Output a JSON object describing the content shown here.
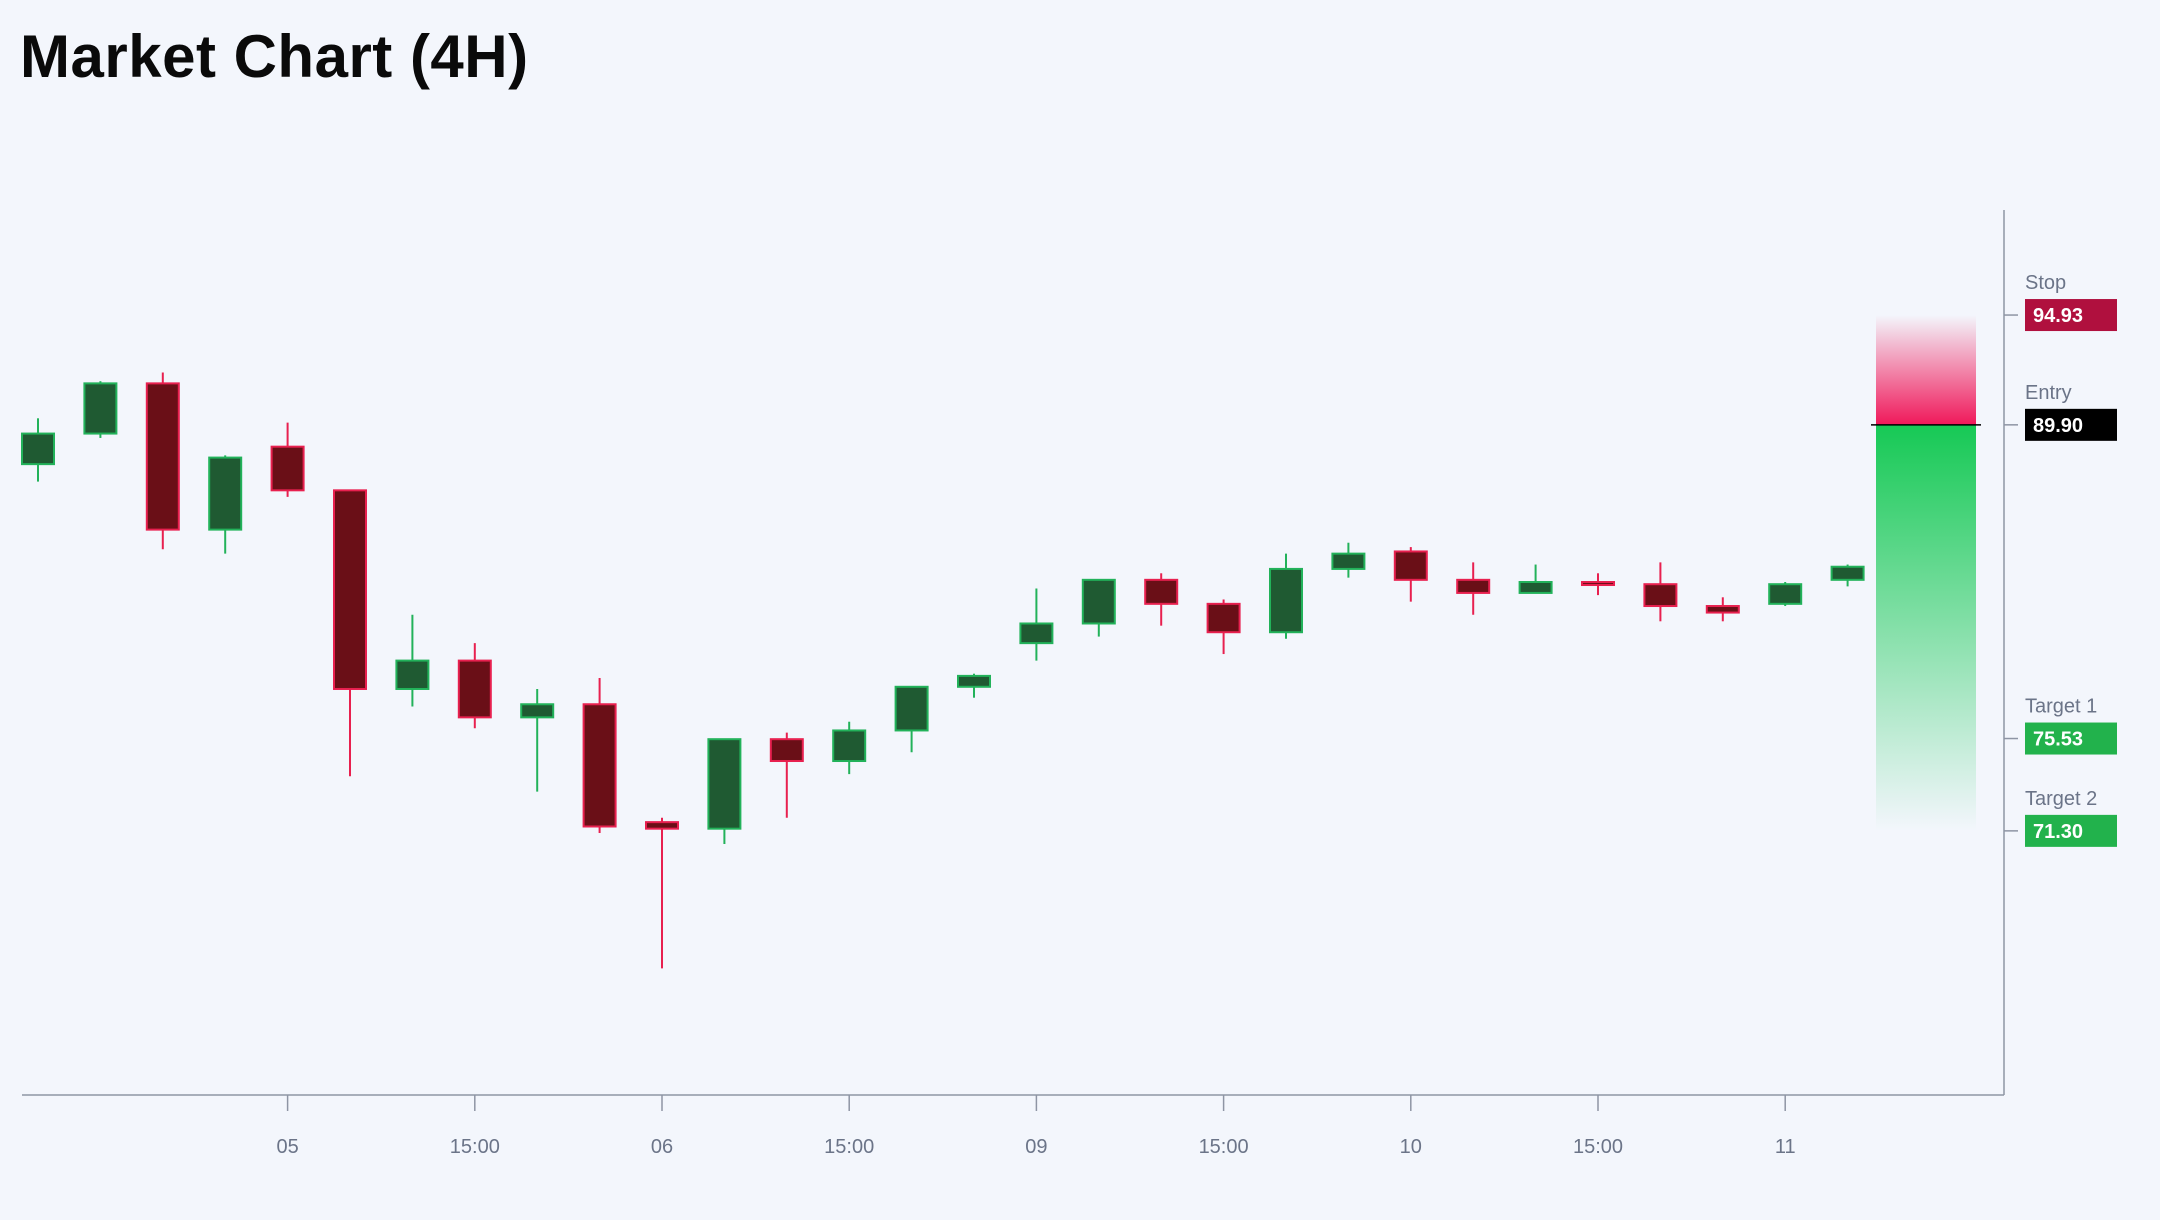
{
  "title": "Market Chart (4H)",
  "colors": {
    "background": "#f3f6fc",
    "up_body": "#1f5a32",
    "up_border": "#22b25a",
    "down_body": "#6a0f17",
    "down_border": "#e8204f",
    "axis": "#8e95a4",
    "stop": "#b0103e",
    "entry": "#000000",
    "target": "#22b24c",
    "zone_red": "#f0185a",
    "zone_green": "#16c955"
  },
  "chart_data": {
    "type": "candlestick",
    "title": "Market Chart (4H)",
    "ylim": [
      59.2,
      100.2
    ],
    "x_ticks": [
      {
        "index": 4,
        "label": "05"
      },
      {
        "index": 7,
        "label": "15:00"
      },
      {
        "index": 10,
        "label": "06"
      },
      {
        "index": 13,
        "label": "15:00"
      },
      {
        "index": 16,
        "label": "09"
      },
      {
        "index": 19,
        "label": "15:00"
      },
      {
        "index": 22,
        "label": "10"
      },
      {
        "index": 25,
        "label": "15:00"
      },
      {
        "index": 28,
        "label": "11"
      }
    ],
    "candles": [
      {
        "o": 88.1,
        "h": 90.2,
        "l": 87.3,
        "c": 89.5
      },
      {
        "o": 89.5,
        "h": 91.9,
        "l": 89.3,
        "c": 91.8
      },
      {
        "o": 91.8,
        "h": 92.3,
        "l": 84.2,
        "c": 85.1
      },
      {
        "o": 85.1,
        "h": 88.5,
        "l": 84.0,
        "c": 88.4
      },
      {
        "o": 88.9,
        "h": 90.0,
        "l": 86.6,
        "c": 86.9
      },
      {
        "o": 86.9,
        "h": 86.9,
        "l": 73.8,
        "c": 77.8
      },
      {
        "o": 77.8,
        "h": 81.2,
        "l": 77.0,
        "c": 79.1
      },
      {
        "o": 79.1,
        "h": 79.9,
        "l": 76.0,
        "c": 76.5
      },
      {
        "o": 76.5,
        "h": 77.8,
        "l": 73.1,
        "c": 77.1
      },
      {
        "o": 77.1,
        "h": 78.3,
        "l": 71.2,
        "c": 71.5
      },
      {
        "o": 71.7,
        "h": 71.9,
        "l": 65.0,
        "c": 71.4
      },
      {
        "o": 71.4,
        "h": 75.5,
        "l": 70.7,
        "c": 75.5
      },
      {
        "o": 75.5,
        "h": 75.8,
        "l": 71.9,
        "c": 74.5
      },
      {
        "o": 74.5,
        "h": 76.3,
        "l": 73.9,
        "c": 75.9
      },
      {
        "o": 75.9,
        "h": 77.9,
        "l": 74.9,
        "c": 77.9
      },
      {
        "o": 77.9,
        "h": 78.5,
        "l": 77.4,
        "c": 78.4
      },
      {
        "o": 79.9,
        "h": 82.4,
        "l": 79.1,
        "c": 80.8
      },
      {
        "o": 80.8,
        "h": 82.8,
        "l": 80.2,
        "c": 82.8
      },
      {
        "o": 82.8,
        "h": 83.1,
        "l": 80.7,
        "c": 81.7
      },
      {
        "o": 81.7,
        "h": 81.9,
        "l": 79.4,
        "c": 80.4
      },
      {
        "o": 80.4,
        "h": 84.0,
        "l": 80.1,
        "c": 83.3
      },
      {
        "o": 83.3,
        "h": 84.5,
        "l": 82.9,
        "c": 84.0
      },
      {
        "o": 84.1,
        "h": 84.3,
        "l": 81.8,
        "c": 82.8
      },
      {
        "o": 82.8,
        "h": 83.6,
        "l": 81.2,
        "c": 82.2
      },
      {
        "o": 82.2,
        "h": 83.5,
        "l": 82.2,
        "c": 82.7
      },
      {
        "o": 82.7,
        "h": 83.1,
        "l": 82.1,
        "c": 82.6
      },
      {
        "o": 82.6,
        "h": 83.6,
        "l": 80.9,
        "c": 81.6
      },
      {
        "o": 81.6,
        "h": 82.0,
        "l": 80.9,
        "c": 81.3
      },
      {
        "o": 81.7,
        "h": 82.7,
        "l": 81.6,
        "c": 82.6
      },
      {
        "o": 82.8,
        "h": 83.5,
        "l": 82.5,
        "c": 83.4
      }
    ],
    "levels": [
      {
        "key": "stop",
        "label": "Stop",
        "value": 94.93,
        "display": "94.93"
      },
      {
        "key": "entry",
        "label": "Entry",
        "value": 89.9,
        "display": "89.90"
      },
      {
        "key": "target1",
        "label": "Target 1",
        "value": 75.53,
        "display": "75.53"
      },
      {
        "key": "target2",
        "label": "Target 2",
        "value": 71.3,
        "display": "71.30"
      }
    ],
    "zone": {
      "risk_top": 94.93,
      "entry": 89.9,
      "reward_bottom": 71.3
    }
  }
}
